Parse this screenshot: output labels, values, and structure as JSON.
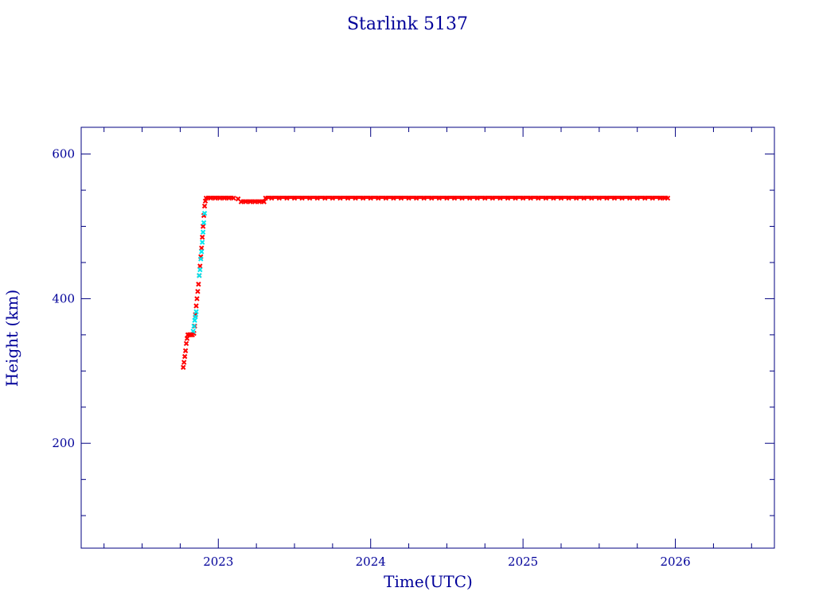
{
  "chart_data": {
    "type": "scatter",
    "title": "Starlink 5137",
    "xlabel": "Time(UTC)",
    "ylabel": "Height (km)",
    "x_axis": {
      "kind": "year",
      "range": [
        2022.1,
        2026.65
      ],
      "ticks": [
        "2023",
        "2024",
        "2025",
        "2026"
      ],
      "minor_step": 0.25
    },
    "y_axis": {
      "range": [
        55,
        637
      ],
      "ticks": [
        200,
        400,
        600
      ],
      "minor_step": 50
    },
    "grid": false,
    "legend": "none",
    "series": [
      {
        "color": "#ff0000",
        "marker": "x",
        "points": [
          [
            2022.77,
            305
          ],
          [
            2022.775,
            312
          ],
          [
            2022.78,
            320
          ],
          [
            2022.785,
            328
          ],
          [
            2022.79,
            338
          ],
          [
            2022.795,
            345
          ],
          [
            2022.8,
            350
          ],
          [
            2022.81,
            350
          ],
          [
            2022.82,
            350
          ],
          [
            2022.83,
            350
          ],
          [
            2022.84,
            352
          ],
          [
            2022.845,
            362
          ],
          [
            2022.85,
            378
          ],
          [
            2022.855,
            390
          ],
          [
            2022.86,
            400
          ],
          [
            2022.865,
            410
          ],
          [
            2022.87,
            420
          ],
          [
            2022.875,
            432
          ],
          [
            2022.88,
            445
          ],
          [
            2022.885,
            458
          ],
          [
            2022.89,
            470
          ],
          [
            2022.895,
            485
          ],
          [
            2022.9,
            500
          ],
          [
            2022.905,
            515
          ],
          [
            2022.91,
            528
          ],
          [
            2022.915,
            535
          ],
          [
            2022.92,
            539
          ],
          [
            2022.95,
            539
          ],
          [
            2022.98,
            539
          ],
          [
            2023.01,
            539
          ],
          [
            2023.04,
            539
          ],
          [
            2023.07,
            539
          ],
          [
            2023.1,
            539
          ],
          [
            2023.13,
            538
          ],
          [
            2023.15,
            534
          ],
          [
            2023.18,
            534
          ],
          [
            2023.21,
            534
          ],
          [
            2023.24,
            534
          ],
          [
            2023.27,
            534
          ],
          [
            2023.3,
            534
          ],
          [
            2023.31,
            539
          ],
          [
            2023.35,
            539
          ],
          [
            2023.4,
            539
          ],
          [
            2023.45,
            539
          ],
          [
            2023.5,
            539
          ],
          [
            2023.55,
            539
          ],
          [
            2023.6,
            539
          ],
          [
            2023.65,
            539
          ],
          [
            2023.7,
            539
          ],
          [
            2023.75,
            539
          ],
          [
            2023.8,
            539
          ],
          [
            2023.85,
            539
          ],
          [
            2023.9,
            539
          ],
          [
            2023.95,
            539
          ],
          [
            2024.0,
            539
          ],
          [
            2024.05,
            539
          ],
          [
            2024.1,
            539
          ],
          [
            2024.15,
            539
          ],
          [
            2024.2,
            539
          ],
          [
            2024.25,
            539
          ],
          [
            2024.3,
            539
          ],
          [
            2024.35,
            539
          ],
          [
            2024.4,
            539
          ],
          [
            2024.45,
            539
          ],
          [
            2024.5,
            539
          ],
          [
            2024.55,
            539
          ],
          [
            2024.6,
            539
          ],
          [
            2024.65,
            539
          ],
          [
            2024.7,
            539
          ],
          [
            2024.75,
            539
          ],
          [
            2024.8,
            539
          ],
          [
            2024.85,
            539
          ],
          [
            2024.9,
            539
          ],
          [
            2024.95,
            539
          ],
          [
            2025.0,
            539
          ],
          [
            2025.05,
            539
          ],
          [
            2025.1,
            539
          ],
          [
            2025.15,
            539
          ],
          [
            2025.2,
            539
          ],
          [
            2025.25,
            539
          ],
          [
            2025.3,
            539
          ],
          [
            2025.35,
            539
          ],
          [
            2025.4,
            539
          ],
          [
            2025.45,
            539
          ],
          [
            2025.5,
            539
          ],
          [
            2025.55,
            539
          ],
          [
            2025.6,
            539
          ],
          [
            2025.65,
            539
          ],
          [
            2025.7,
            539
          ],
          [
            2025.75,
            539
          ],
          [
            2025.8,
            539
          ],
          [
            2025.85,
            539
          ],
          [
            2025.9,
            539
          ],
          [
            2025.93,
            539
          ],
          [
            2025.95,
            539
          ]
        ]
      },
      {
        "color": "#00e5ee",
        "marker": "x",
        "points": [
          [
            2022.835,
            355
          ],
          [
            2022.84,
            362
          ],
          [
            2022.845,
            370
          ],
          [
            2022.85,
            375
          ],
          [
            2022.855,
            382
          ],
          [
            2022.875,
            432
          ],
          [
            2022.88,
            440
          ],
          [
            2022.885,
            455
          ],
          [
            2022.89,
            465
          ],
          [
            2022.895,
            478
          ],
          [
            2022.9,
            492
          ],
          [
            2022.905,
            505
          ],
          [
            2022.91,
            518
          ]
        ]
      }
    ]
  }
}
